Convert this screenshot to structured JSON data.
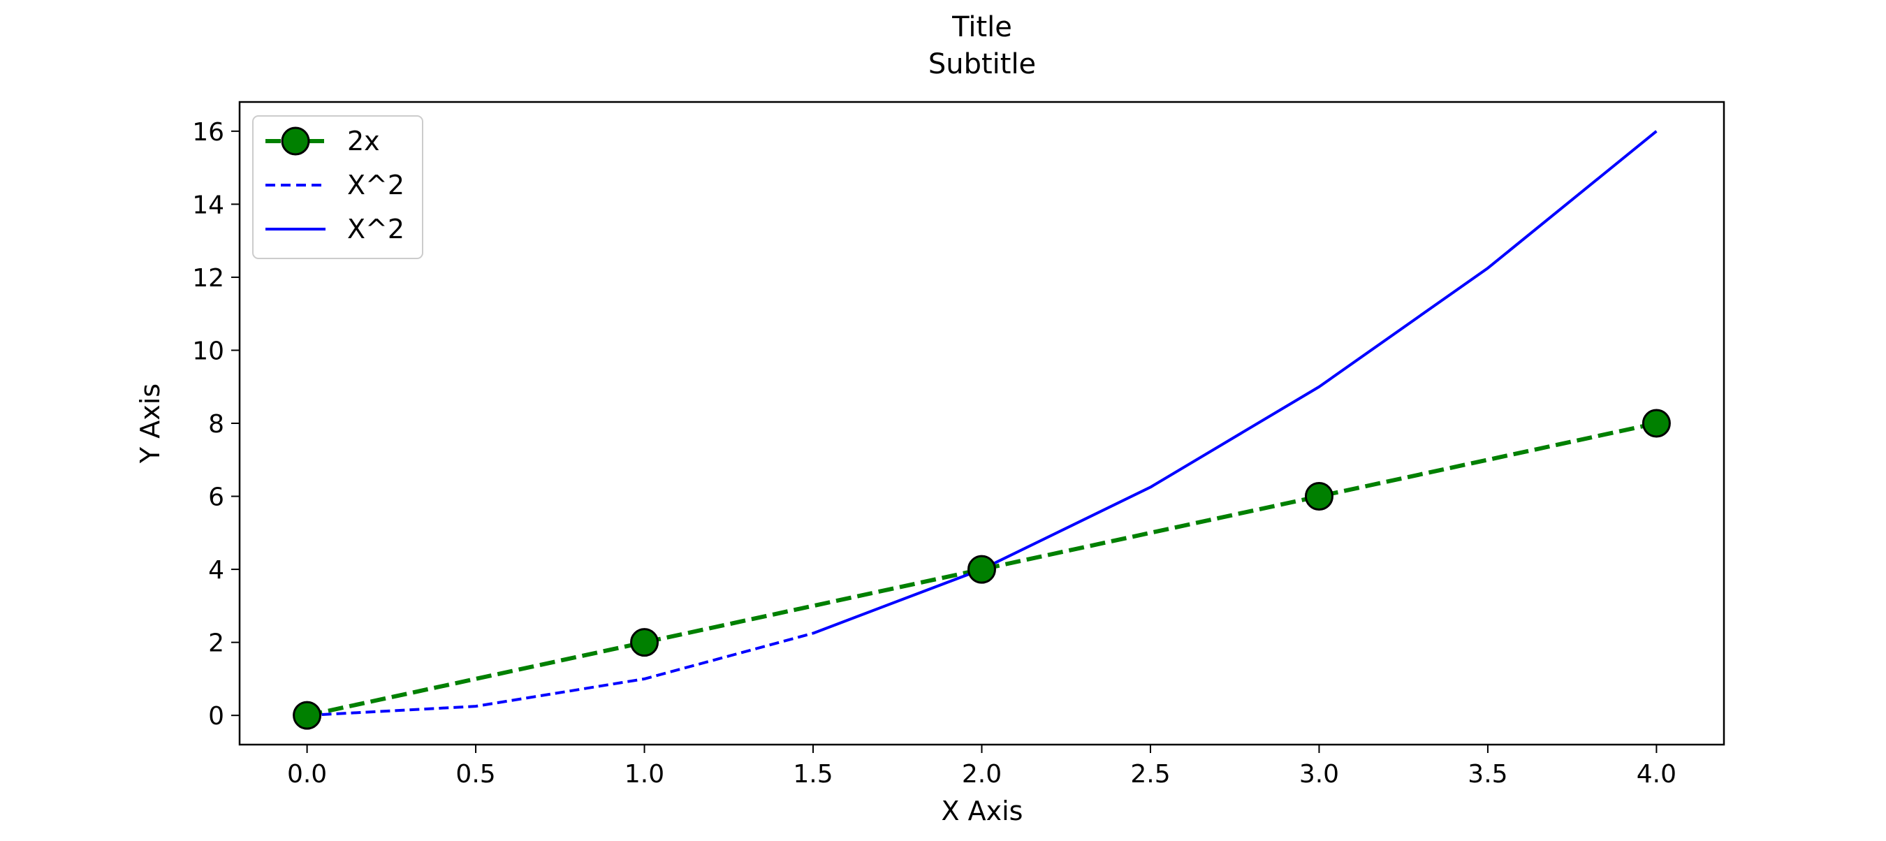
{
  "chart_data": {
    "type": "line",
    "title": "Title",
    "subtitle": "Subtitle",
    "xlabel": "X Axis",
    "ylabel": "Y Axis",
    "xlim": [
      -0.2,
      4.2
    ],
    "ylim": [
      -0.8,
      16.8
    ],
    "x_ticks": [
      0,
      0.5,
      1,
      1.5,
      2,
      2.5,
      3,
      3.5,
      4
    ],
    "x_tick_labels": [
      "0.0",
      "0.5",
      "1.0",
      "1.5",
      "2.0",
      "2.5",
      "3.0",
      "3.5",
      "4.0"
    ],
    "y_ticks": [
      0,
      2,
      4,
      6,
      8,
      10,
      12,
      14,
      16
    ],
    "y_tick_labels": [
      "0",
      "2",
      "4",
      "6",
      "8",
      "10",
      "12",
      "14",
      "16"
    ],
    "grid": false,
    "legend_position": "top-left",
    "series": [
      {
        "name": "2x",
        "style": "dashed",
        "marker": "circle",
        "color": "#008000",
        "marker_edge_color": "#000000",
        "x": [
          0,
          1,
          2,
          3,
          4
        ],
        "y": [
          0,
          2,
          4,
          6,
          8
        ]
      },
      {
        "name": "X^2",
        "style": "dashed",
        "marker": "none",
        "color": "#0000ff",
        "x": [
          0,
          0.5,
          1,
          1.5
        ],
        "y": [
          0,
          0.25,
          1,
          2.25
        ]
      },
      {
        "name": "X^2",
        "style": "solid",
        "marker": "none",
        "color": "#0000ff",
        "x": [
          1.5,
          2,
          2.5,
          3,
          3.5,
          4
        ],
        "y": [
          2.25,
          4,
          6.25,
          9,
          12.25,
          16
        ]
      }
    ]
  }
}
